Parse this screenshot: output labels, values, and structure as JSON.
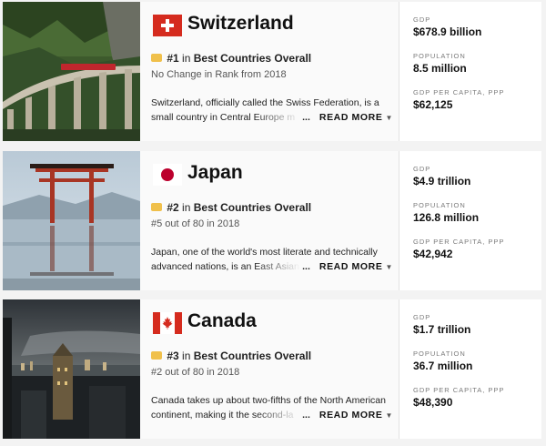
{
  "countries": [
    {
      "name": "Switzerland",
      "flag": "swiss-flag",
      "rank_number": "#1",
      "rank_in": "in",
      "rank_category": "Best Countries Overall",
      "rank_change": "No Change in Rank from 2018",
      "description_line1": "Switzerland, officially called the Swiss Federation, is a",
      "description_line2": "small country in Central Europe m",
      "ellipsis": "...",
      "read_more": "READ MORE",
      "stats": [
        {
          "label": "GDP",
          "value": "$678.9 billion"
        },
        {
          "label": "POPULATION",
          "value": "8.5 million"
        },
        {
          "label": "GDP PER CAPITA, PPP",
          "value": "$62,125"
        }
      ]
    },
    {
      "name": "Japan",
      "flag": "japan-flag",
      "rank_number": "#2",
      "rank_in": "in",
      "rank_category": "Best Countries Overall",
      "rank_change": "#5 out of 80 in 2018",
      "description_line1": "Japan, one of the world's most literate and technically",
      "description_line2": "advanced nations, is an East Asian",
      "ellipsis": "...",
      "read_more": "READ MORE",
      "stats": [
        {
          "label": "GDP",
          "value": "$4.9 trillion"
        },
        {
          "label": "POPULATION",
          "value": "126.8 million"
        },
        {
          "label": "GDP PER CAPITA, PPP",
          "value": "$42,942"
        }
      ]
    },
    {
      "name": "Canada",
      "flag": "canada-flag",
      "rank_number": "#3",
      "rank_in": "in",
      "rank_category": "Best Countries Overall",
      "rank_change": "#2 out of 80 in 2018",
      "description_line1": "Canada takes up about two-fifths of the North American",
      "description_line2": "continent, making it the second-la",
      "ellipsis": "...",
      "read_more": "READ MORE",
      "stats": [
        {
          "label": "GDP",
          "value": "$1.7 trillion"
        },
        {
          "label": "POPULATION",
          "value": "36.7 million"
        },
        {
          "label": "GDP PER CAPITA, PPP",
          "value": "$48,390"
        }
      ]
    }
  ],
  "icons": {
    "medal": "medal-icon",
    "chevron": "chevron-down-icon"
  },
  "colors": {
    "swiss_red": "#d52b1e",
    "japan_red": "#bc002d",
    "canada_red": "#d52b1e",
    "medal_gold": "#f0c04b"
  }
}
